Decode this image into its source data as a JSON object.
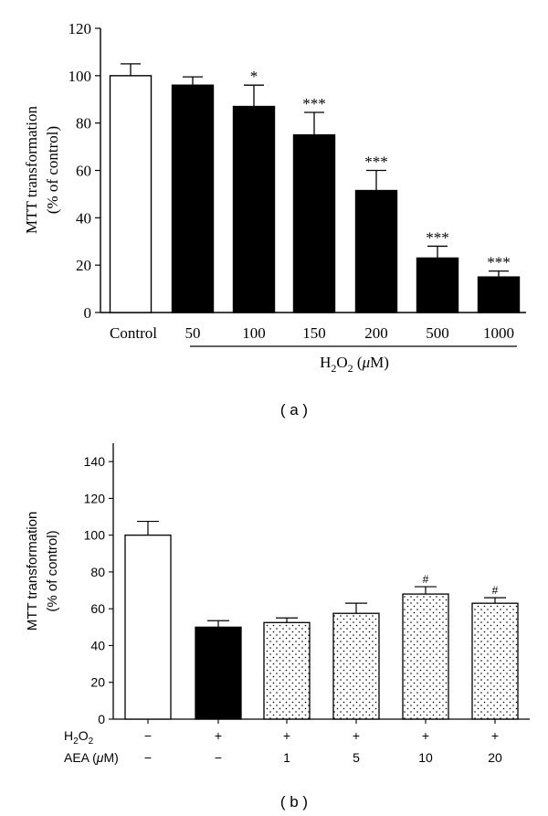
{
  "chart_data": [
    {
      "type": "bar",
      "panel_label": "( a )",
      "ylabel_line1": "MTT transformation",
      "ylabel_line2": "(% of control)",
      "ylim": [
        0,
        120
      ],
      "yticks": [
        "0",
        "20",
        "40",
        "60",
        "80",
        "100",
        "120"
      ],
      "categories": [
        "Control",
        "50",
        "100",
        "150",
        "200",
        "500",
        "1000"
      ],
      "values": [
        100,
        96,
        87,
        75,
        51.5,
        23,
        15
      ],
      "errors": [
        5,
        3.5,
        9,
        9.5,
        8.5,
        5,
        2.5
      ],
      "significance": [
        "",
        "",
        "*",
        "***",
        "***",
        "***",
        "***"
      ],
      "bar_fill": [
        "white",
        "black",
        "black",
        "black",
        "black",
        "black",
        "black"
      ],
      "group_label": {
        "prefix": "H",
        "sub": "2",
        "mid": "O",
        "sub2": "2",
        "unit_open": " (",
        "unit_mu": "μ",
        "unit_rest": "M)"
      },
      "grid": false
    },
    {
      "type": "bar",
      "panel_label": "( b )",
      "ylabel_line1": "MTT transformation",
      "ylabel_line2": "(% of control)",
      "ylim": [
        0,
        150
      ],
      "yticks": [
        "0",
        "20",
        "40",
        "60",
        "80",
        "100",
        "120",
        "140"
      ],
      "values": [
        100,
        50,
        52.5,
        57.5,
        68,
        63
      ],
      "errors": [
        7.5,
        3.5,
        2.5,
        5.5,
        4,
        3
      ],
      "significance": [
        "",
        "",
        "",
        "",
        "#",
        "#"
      ],
      "bar_fill": [
        "white",
        "black",
        "dotted",
        "dotted",
        "dotted",
        "dotted"
      ],
      "row1_label": {
        "prefix": "H",
        "sub": "2",
        "mid": "O",
        "sub2": "2"
      },
      "row1_values": [
        "−",
        "+",
        "+",
        "+",
        "+",
        "+"
      ],
      "row2_label": {
        "prefix": "AEA (",
        "mu": "μ",
        "rest": "M)"
      },
      "row2_values": [
        "−",
        "−",
        "1",
        "5",
        "10",
        "20"
      ],
      "grid": false
    }
  ]
}
